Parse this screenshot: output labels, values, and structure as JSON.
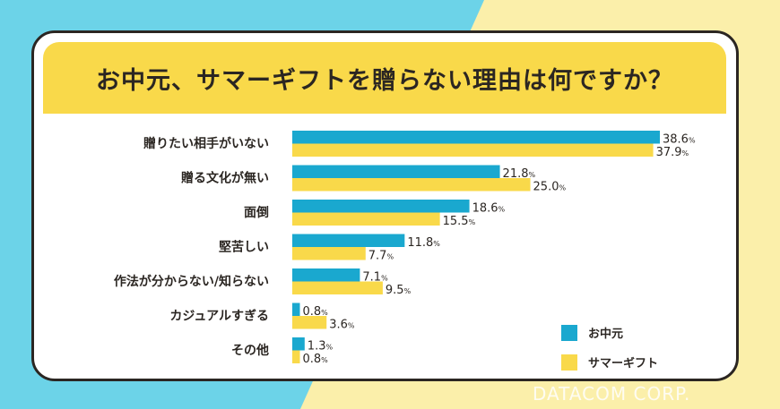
{
  "title": "お中元、サマーギフトを贈らない理由は何ですか？",
  "brand": "DATACOM CORP.",
  "colors": {
    "ochugen": "#1aa8cf",
    "summer_gift": "#f9d94a",
    "bg_blue": "#6cd3e8",
    "bg_yellow": "#fbefaa"
  },
  "chart_data": {
    "type": "bar",
    "orientation": "horizontal",
    "title": "お中元、サマーギフトを贈らない理由は何ですか？",
    "categories": [
      "贈りたい相手がいない",
      "贈る文化が無い",
      "面倒",
      "堅苦しい",
      "作法が分からない/知らない",
      "カジュアルすぎる",
      "その他"
    ],
    "series": [
      {
        "name": "お中元",
        "color": "#1aa8cf",
        "values": [
          38.6,
          21.8,
          18.6,
          11.8,
          7.1,
          0.8,
          1.3
        ]
      },
      {
        "name": "サマーギフト",
        "color": "#f9d94a",
        "values": [
          37.9,
          25.0,
          15.5,
          7.7,
          9.5,
          3.6,
          0.8
        ]
      }
    ],
    "unit": "%",
    "legend": "bottom-right",
    "grid": false
  }
}
